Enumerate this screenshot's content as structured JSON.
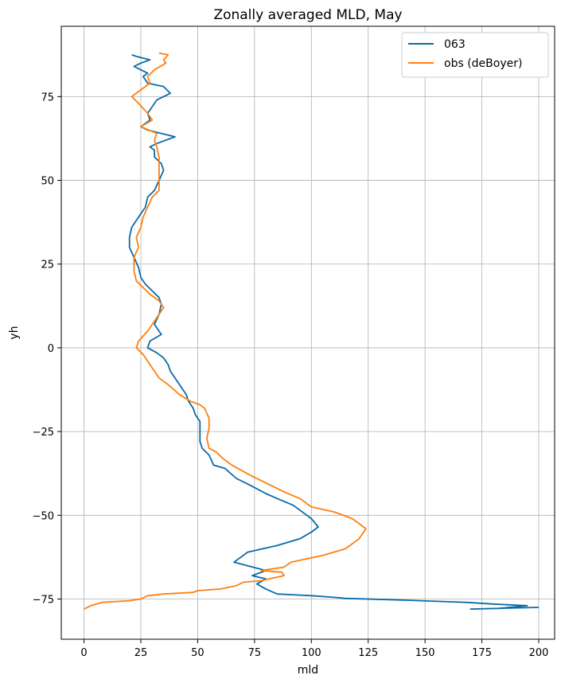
{
  "chart_data": {
    "type": "line",
    "title": "Zonally averaged MLD, May",
    "xlabel": "mld",
    "ylabel": "yh",
    "xlim": [
      -10,
      207
    ],
    "ylim": [
      -87,
      96
    ],
    "xticks": [
      0,
      25,
      50,
      75,
      100,
      125,
      150,
      175,
      200
    ],
    "yticks": [
      -75,
      -50,
      -25,
      0,
      25,
      50,
      75
    ],
    "xtick_labels": [
      "0",
      "25",
      "50",
      "75",
      "100",
      "125",
      "150",
      "175",
      "200"
    ],
    "ytick_labels": [
      "−75",
      "−50",
      "−25",
      "0",
      "25",
      "50",
      "75"
    ],
    "grid": true,
    "legend_position": "top-right",
    "series": [
      {
        "name": "063",
        "color": "#0a6ba8",
        "points": [
          [
            200,
            -77.5
          ],
          [
            170,
            -78
          ],
          [
            182,
            -77.8
          ],
          [
            195,
            -77
          ],
          [
            180,
            -76.5
          ],
          [
            168,
            -76
          ],
          [
            160,
            -75.8
          ],
          [
            140,
            -75.3
          ],
          [
            115,
            -74.8
          ],
          [
            110,
            -74.5
          ],
          [
            100,
            -74
          ],
          [
            85,
            -73.5
          ],
          [
            80,
            -72
          ],
          [
            76,
            -70.5
          ],
          [
            80,
            -69
          ],
          [
            74,
            -68
          ],
          [
            80,
            -66.5
          ],
          [
            66,
            -64
          ],
          [
            72,
            -61
          ],
          [
            85,
            -59
          ],
          [
            95,
            -57
          ],
          [
            100,
            -55
          ],
          [
            103,
            -53.5
          ],
          [
            100,
            -51
          ],
          [
            92,
            -47
          ],
          [
            85,
            -45
          ],
          [
            80,
            -43.5
          ],
          [
            73,
            -41
          ],
          [
            67,
            -39
          ],
          [
            62,
            -36
          ],
          [
            57,
            -35
          ],
          [
            55,
            -32
          ],
          [
            52,
            -30
          ],
          [
            51,
            -28
          ],
          [
            51,
            -25
          ],
          [
            51,
            -22
          ],
          [
            49,
            -20
          ],
          [
            48,
            -18
          ],
          [
            46,
            -16
          ],
          [
            45,
            -14
          ],
          [
            43,
            -12
          ],
          [
            40,
            -9
          ],
          [
            38,
            -7
          ],
          [
            37,
            -5
          ],
          [
            35,
            -3
          ],
          [
            32,
            -1.5
          ],
          [
            28,
            0
          ],
          [
            29,
            2
          ],
          [
            34,
            4
          ],
          [
            31,
            7
          ],
          [
            33,
            10
          ],
          [
            34,
            13
          ],
          [
            33,
            15
          ],
          [
            30,
            17
          ],
          [
            27,
            19
          ],
          [
            25,
            21
          ],
          [
            24,
            24
          ],
          [
            22,
            27
          ],
          [
            20,
            30
          ],
          [
            20,
            33
          ],
          [
            21,
            36
          ],
          [
            24,
            39
          ],
          [
            27,
            42
          ],
          [
            28,
            45
          ],
          [
            31,
            47
          ],
          [
            33,
            50
          ],
          [
            35,
            53
          ],
          [
            34,
            55
          ],
          [
            31,
            57
          ],
          [
            31,
            59
          ],
          [
            29,
            60
          ],
          [
            32,
            61
          ],
          [
            40,
            63
          ],
          [
            34,
            64
          ],
          [
            28,
            65
          ],
          [
            25,
            66
          ],
          [
            29,
            68
          ],
          [
            28,
            70
          ],
          [
            30,
            72
          ],
          [
            32,
            74
          ],
          [
            38,
            76
          ],
          [
            35,
            78
          ],
          [
            28,
            79
          ],
          [
            26,
            81
          ],
          [
            28,
            82
          ],
          [
            25,
            83
          ],
          [
            22,
            84
          ],
          [
            25,
            85
          ],
          [
            29,
            86
          ],
          [
            23,
            87
          ],
          [
            21,
            87.5
          ]
        ]
      },
      {
        "name": "obs (deBoyer)",
        "color": "#ff7f0e",
        "points": [
          [
            0,
            -78
          ],
          [
            3,
            -77
          ],
          [
            8,
            -76
          ],
          [
            20,
            -75.5
          ],
          [
            25,
            -75
          ],
          [
            28,
            -74
          ],
          [
            35,
            -73.5
          ],
          [
            48,
            -73
          ],
          [
            50,
            -72.5
          ],
          [
            60,
            -72
          ],
          [
            67,
            -71
          ],
          [
            70,
            -70
          ],
          [
            78,
            -69.5
          ],
          [
            88,
            -68
          ],
          [
            87,
            -67
          ],
          [
            78,
            -66.5
          ],
          [
            88,
            -65.5
          ],
          [
            91,
            -64
          ],
          [
            105,
            -62
          ],
          [
            115,
            -60
          ],
          [
            121,
            -57
          ],
          [
            124,
            -54
          ],
          [
            118,
            -51
          ],
          [
            110,
            -49
          ],
          [
            100,
            -47.5
          ],
          [
            95,
            -45
          ],
          [
            88,
            -43
          ],
          [
            82,
            -41
          ],
          [
            73,
            -38
          ],
          [
            65,
            -35
          ],
          [
            61,
            -33
          ],
          [
            58,
            -31
          ],
          [
            55,
            -30
          ],
          [
            54,
            -27
          ],
          [
            55,
            -24
          ],
          [
            55,
            -21
          ],
          [
            53,
            -18
          ],
          [
            51,
            -17
          ],
          [
            47,
            -16
          ],
          [
            42,
            -14
          ],
          [
            37,
            -11
          ],
          [
            33,
            -9
          ],
          [
            30,
            -6
          ],
          [
            28,
            -4
          ],
          [
            26,
            -2
          ],
          [
            23,
            0
          ],
          [
            24,
            2
          ],
          [
            28,
            5
          ],
          [
            30,
            7
          ],
          [
            32,
            9
          ],
          [
            35,
            12
          ],
          [
            33,
            14
          ],
          [
            29,
            16
          ],
          [
            26,
            18
          ],
          [
            23,
            20
          ],
          [
            22,
            23
          ],
          [
            22,
            27
          ],
          [
            24,
            30
          ],
          [
            23,
            33
          ],
          [
            25,
            36
          ],
          [
            26,
            39
          ],
          [
            28,
            42
          ],
          [
            30,
            45
          ],
          [
            33,
            47
          ],
          [
            33,
            49
          ],
          [
            33,
            53
          ],
          [
            33,
            57
          ],
          [
            32,
            60
          ],
          [
            31,
            62
          ],
          [
            32,
            64
          ],
          [
            25,
            66
          ],
          [
            30,
            68
          ],
          [
            28,
            70
          ],
          [
            24,
            73
          ],
          [
            21,
            75
          ],
          [
            25,
            77
          ],
          [
            29,
            79
          ],
          [
            28,
            81
          ],
          [
            31,
            83
          ],
          [
            36,
            85
          ],
          [
            35,
            86
          ],
          [
            37,
            87.5
          ],
          [
            33,
            88
          ]
        ]
      }
    ]
  }
}
